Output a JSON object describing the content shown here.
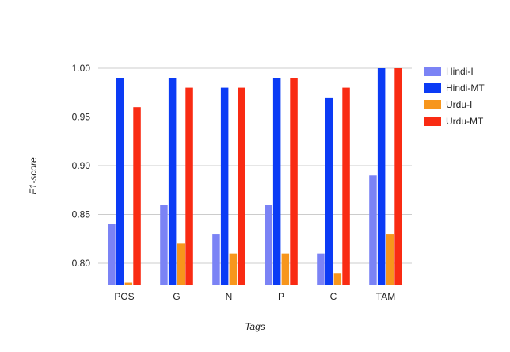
{
  "chart_data": {
    "type": "bar",
    "title": "",
    "xlabel": "Tags",
    "ylabel": "F1-score",
    "categories": [
      "POS",
      "G",
      "N",
      "P",
      "C",
      "TAM"
    ],
    "series": [
      {
        "name": "Hindi-I",
        "color": "#7b83f5",
        "values": [
          0.84,
          0.86,
          0.83,
          0.86,
          0.81,
          0.89
        ]
      },
      {
        "name": "Hindi-MT",
        "color": "#0b3bf5",
        "values": [
          0.99,
          0.99,
          0.98,
          0.99,
          0.97,
          1.0
        ]
      },
      {
        "name": "Urdu-I",
        "color": "#f7961c",
        "values": [
          0.78,
          0.82,
          0.81,
          0.81,
          0.79,
          0.83
        ]
      },
      {
        "name": "Urdu-MT",
        "color": "#f92b13",
        "values": [
          0.96,
          0.98,
          0.98,
          0.99,
          0.98,
          1.0
        ]
      }
    ],
    "ylim": [
      0.778,
      1.0
    ],
    "yticks": [
      "0.80",
      "0.85",
      "0.90",
      "0.95",
      "1.00"
    ],
    "grid": true,
    "legend_position": "right"
  }
}
